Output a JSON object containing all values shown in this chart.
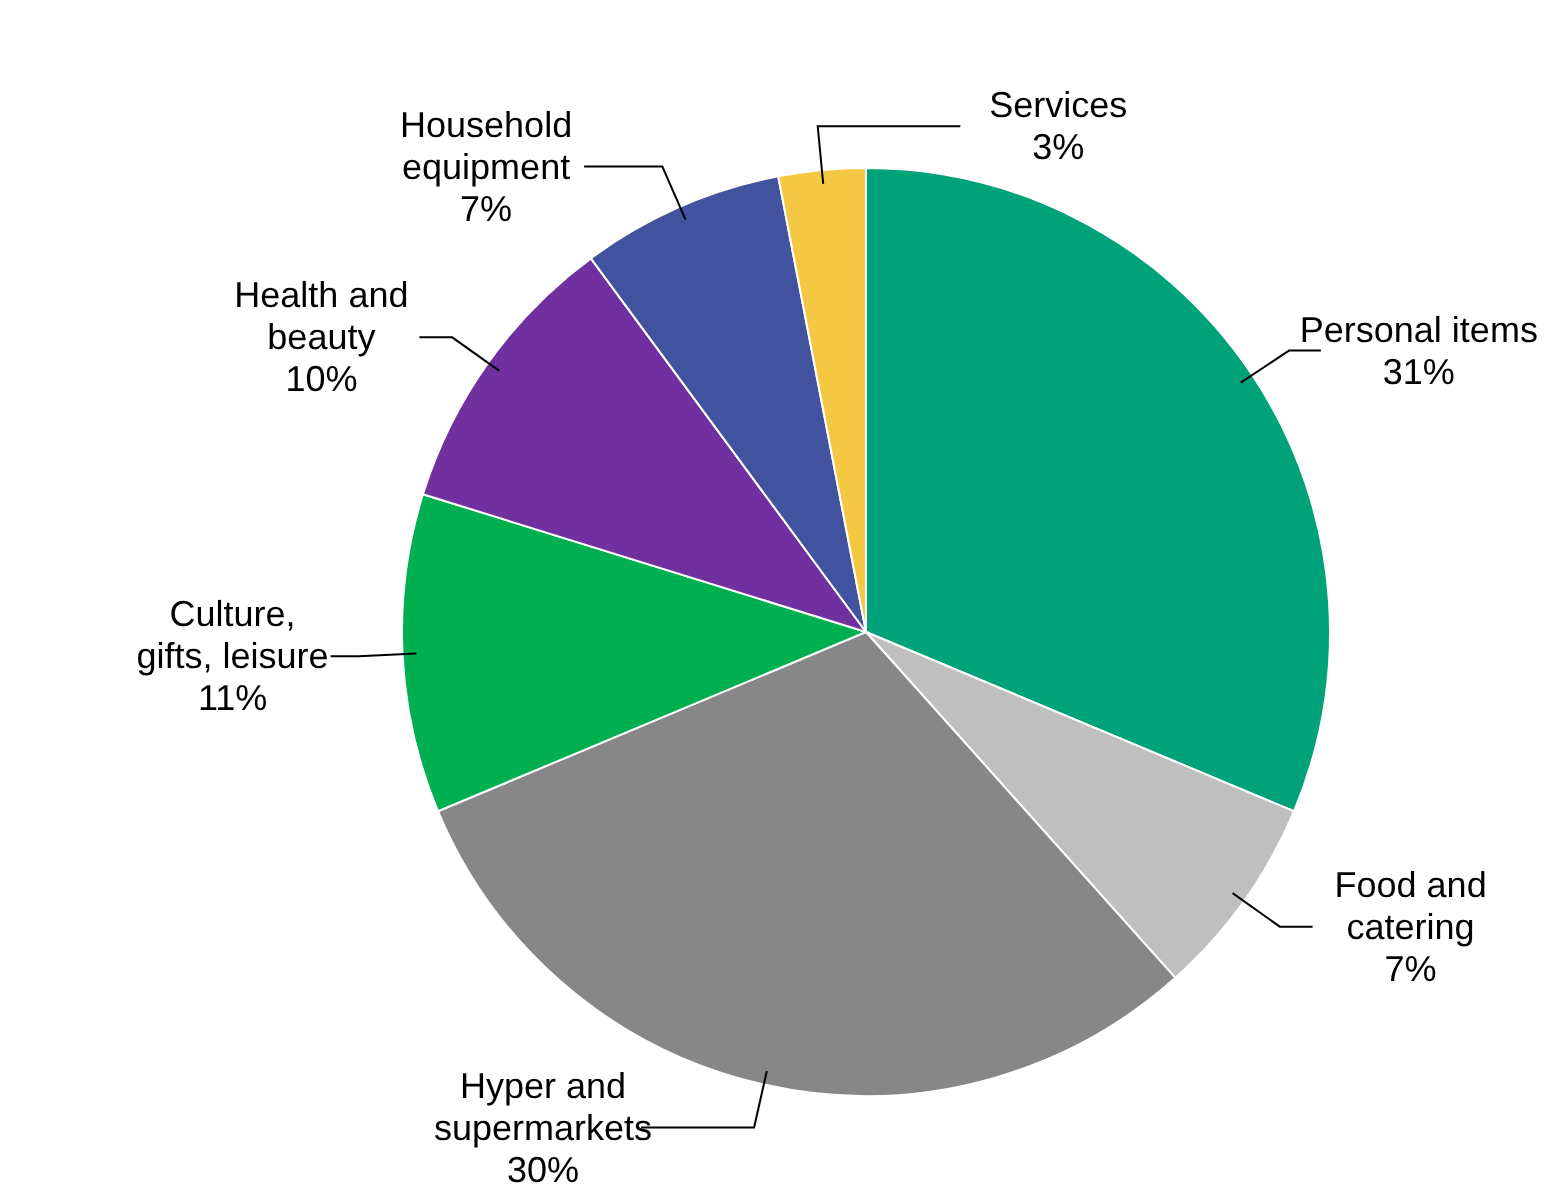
{
  "chart_data": {
    "type": "pie",
    "categories": [
      "Personal items",
      "Food and catering",
      "Hyper and supermarkets",
      "Culture, gifts, leisure",
      "Health and beauty",
      "Household equipment",
      "Services"
    ],
    "values": [
      31,
      7,
      30,
      11,
      10,
      7,
      3
    ],
    "colors": [
      "#00a27a",
      "#bfbfbf",
      "#878787",
      "#00b050",
      "#7030a0",
      "#41539f",
      "#f4c842"
    ],
    "value_labels": [
      "31%",
      "7%",
      "30%",
      "11%",
      "10%",
      "7%",
      "3%"
    ],
    "legend": false
  }
}
